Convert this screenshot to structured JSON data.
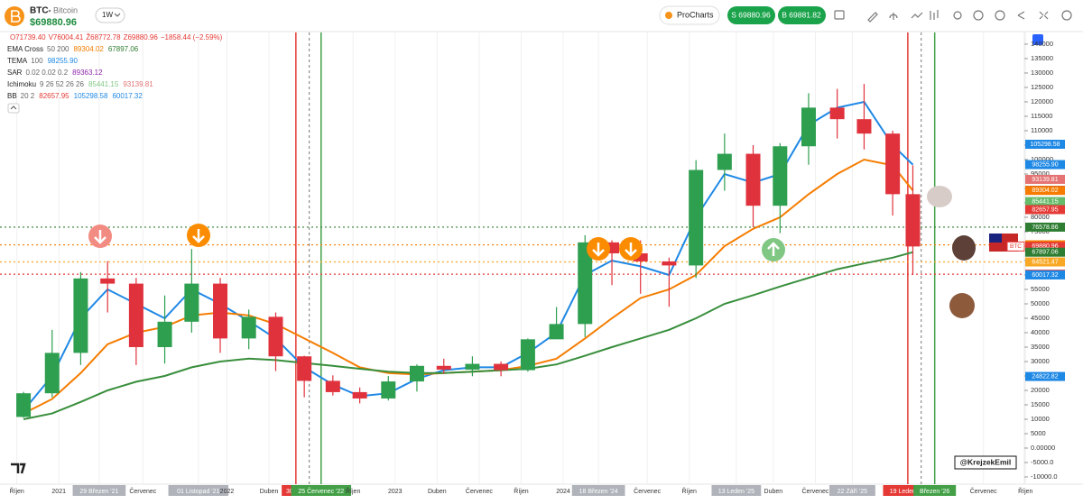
{
  "header": {
    "symbol": "BTC",
    "name": "Bitcoin",
    "price": "$69880.96",
    "interval": "1W",
    "brand": "ProCharts",
    "sell": "S 69880.96",
    "buy": "B 69881.82"
  },
  "ohlc": {
    "open": "O71739.40",
    "high": "V76004.41",
    "low": "Ž68772.78",
    "close": "Z69880.96",
    "change": "−1858.44 (−2.59%)"
  },
  "indicators": [
    {
      "name": "EMA Cross",
      "params": "50 200",
      "values": [
        "89304.02",
        "67897.06"
      ],
      "colors": [
        "#f57c00",
        "#2e7d32"
      ]
    },
    {
      "name": "TEMA",
      "params": "100",
      "values": [
        "98255.90"
      ],
      "colors": [
        "#1e88e5"
      ]
    },
    {
      "name": "SAR",
      "params": "0.02 0.02 0.2",
      "values": [
        "89363.12"
      ],
      "colors": [
        "#8e24aa"
      ]
    },
    {
      "name": "Ichimoku",
      "params": "9 26 52 26 26",
      "values": [
        "85441.15",
        "93139.81"
      ],
      "colors": [
        "#81c784",
        "#e57373"
      ]
    },
    {
      "name": "BB",
      "params": "20 2",
      "values": [
        "82657.95",
        "105298.58",
        "60017.32"
      ],
      "colors": [
        "#e53935",
        "#1e88e5",
        "#1e88e5"
      ]
    }
  ],
  "watermark": "@KrejzekEmil",
  "chart_data": {
    "type": "candlestick",
    "up_color": "#2e9e4f",
    "down_color": "#e0323c",
    "x": [
      2020.79,
      2020.96,
      2021.13,
      2021.29,
      2021.46,
      2021.63,
      2021.79,
      2021.96,
      2022.13,
      2022.29,
      2022.46,
      2022.63,
      2022.79,
      2022.96,
      2023.13,
      2023.29,
      2023.46,
      2023.63,
      2023.79,
      2023.96,
      2024.13,
      2024.29,
      2024.46,
      2024.63,
      2024.79,
      2024.96,
      2025.13,
      2025.29,
      2025.46,
      2025.63,
      2025.79,
      2025.96,
      2026.08
    ],
    "open": [
      10800,
      19000,
      33000,
      58800,
      57000,
      35000,
      43800,
      57000,
      38000,
      45500,
      31800,
      23300,
      19400,
      17200,
      23100,
      28500,
      27200,
      29200,
      27000,
      37700,
      43000,
      71300,
      67500,
      64700,
      63300,
      96400,
      102000,
      84000,
      104600,
      118000,
      114000,
      109000,
      88000
    ],
    "high": [
      19500,
      41000,
      61000,
      64800,
      59000,
      52900,
      69000,
      59000,
      48000,
      47000,
      32000,
      25200,
      21000,
      25000,
      29000,
      31000,
      31800,
      30000,
      38000,
      48900,
      73800,
      72000,
      72000,
      66000,
      99800,
      109000,
      105000,
      105700,
      123000,
      124500,
      126200,
      110000,
      98000
    ],
    "low": [
      10500,
      17600,
      28800,
      47000,
      28800,
      29300,
      40000,
      33000,
      34300,
      26700,
      17600,
      18200,
      15500,
      16500,
      19600,
      25800,
      24900,
      24900,
      26500,
      37800,
      38500,
      56500,
      53500,
      49000,
      58900,
      89200,
      76600,
      74500,
      98200,
      107300,
      103500,
      80600,
      60000
    ],
    "close": [
      19000,
      33000,
      58800,
      57000,
      35000,
      43800,
      57000,
      38000,
      45500,
      31800,
      23300,
      19400,
      17200,
      23100,
      28500,
      27200,
      29200,
      27000,
      37700,
      43000,
      71300,
      67500,
      64700,
      63300,
      96400,
      102000,
      84000,
      104600,
      118000,
      114000,
      109000,
      88000,
      69880.96
    ],
    "series": [
      {
        "color": "#1e88e5",
        "values": [
          13000,
          25000,
          45000,
          55000,
          50000,
          45000,
          55000,
          50000,
          44000,
          38000,
          28000,
          22000,
          18000,
          19000,
          24000,
          27000,
          28000,
          28000,
          33000,
          40000,
          60000,
          65000,
          63000,
          60000,
          80000,
          95000,
          92000,
          95000,
          112000,
          118000,
          120000,
          105000,
          98255.9
        ]
      },
      {
        "color": "#f57c00",
        "values": [
          12000,
          17000,
          26000,
          36000,
          40000,
          42000,
          46000,
          47000,
          46000,
          43000,
          38000,
          33000,
          28000,
          26000,
          25500,
          26000,
          26500,
          27000,
          28500,
          31000,
          38000,
          45000,
          52000,
          55000,
          60000,
          70000,
          76000,
          80000,
          88000,
          95000,
          100000,
          98000,
          89304.02
        ]
      },
      {
        "color": "#388e3c",
        "values": [
          10000,
          12000,
          16000,
          20000,
          23000,
          25000,
          28000,
          30000,
          31000,
          30500,
          29500,
          28500,
          27500,
          26500,
          26000,
          26000,
          26500,
          27000,
          27500,
          29000,
          32000,
          35000,
          38000,
          41000,
          45000,
          50000,
          53000,
          56000,
          59000,
          62000,
          64000,
          66000,
          67897.06
        ]
      }
    ],
    "xlim": [
      2020.65,
      2026.77
    ],
    "ylim": [
      -13750,
      155300
    ],
    "yticks": [
      140000,
      135000,
      130000,
      125000,
      120000,
      115000,
      110000,
      105000,
      100000,
      95000,
      90000,
      85000,
      80000,
      75000,
      70000,
      65000,
      60000,
      55000,
      50000,
      45000,
      40000,
      35000,
      30000,
      25000,
      20000,
      15000,
      10000,
      5000,
      {
        "value": 0,
        "label": "0.00000"
      },
      {
        "value": -5000,
        "label": "-5000.0"
      },
      {
        "value": -10000,
        "label": "-10000.0"
      }
    ],
    "xticks": [
      {
        "value": 2020.75,
        "label": "Říjen"
      },
      {
        "value": 2021.0,
        "label": "2021"
      },
      {
        "value": 2021.24,
        "label": "29 Březen '21",
        "bg": "#b0b3ba"
      },
      {
        "value": 2021.5,
        "label": "Červenec"
      },
      {
        "value": 2021.83,
        "label": "01 Listopad '21",
        "bg": "#b0b3ba"
      },
      {
        "value": 2022.0,
        "label": "2022"
      },
      {
        "value": 2022.25,
        "label": "Duben"
      },
      {
        "value": 2022.41,
        "label": "30 Kvě",
        "bg": "#e53935"
      },
      {
        "value": 2022.56,
        "label": "25 Červenec '22",
        "bg": "#43a047"
      },
      {
        "value": 2022.75,
        "label": "Říjen"
      },
      {
        "value": 2023.0,
        "label": "2023"
      },
      {
        "value": 2023.25,
        "label": "Duben"
      },
      {
        "value": 2023.5,
        "label": "Červenec"
      },
      {
        "value": 2023.75,
        "label": "Říjen"
      },
      {
        "value": 2024.0,
        "label": "2024"
      },
      {
        "value": 2024.21,
        "label": "18 Březen '24",
        "bg": "#b0b3ba"
      },
      {
        "value": 2024.5,
        "label": "Červenec"
      },
      {
        "value": 2024.75,
        "label": "Říjen"
      },
      {
        "value": 2025.03,
        "label": "13 Leden '25",
        "bg": "#b0b3ba"
      },
      {
        "value": 2025.25,
        "label": "Duben"
      },
      {
        "value": 2025.5,
        "label": "Červenec"
      },
      {
        "value": 2025.72,
        "label": "22 Září '25",
        "bg": "#b0b3ba"
      },
      {
        "value": 2026.05,
        "label": "19 Leden '26",
        "bg": "#e53935"
      },
      {
        "value": 2026.21,
        "label": "Březen '26",
        "bg": "#43a047"
      },
      {
        "value": 2026.5,
        "label": "Červenec"
      },
      {
        "value": 2026.75,
        "label": "Říjen"
      }
    ],
    "vlines": [
      {
        "x": 2022.41,
        "color": "#e53935"
      },
      {
        "x": 2022.49,
        "color": "#555555",
        "dashed": true
      },
      {
        "x": 2022.56,
        "color": "#43a047"
      },
      {
        "x": 2026.05,
        "color": "#e53935"
      },
      {
        "x": 2026.13,
        "color": "#555555",
        "dashed": true
      },
      {
        "x": 2026.21,
        "color": "#43a047"
      }
    ],
    "price_tags": [
      {
        "value": 105298.58,
        "label": "105298.58",
        "color": "#1e88e5"
      },
      {
        "value": 98255.9,
        "label": "98255.90",
        "color": "#1e88e5"
      },
      {
        "value": 93139.81,
        "label": "93139.81",
        "color": "#e57373"
      },
      {
        "value": 89363.12,
        "label": "89363.12",
        "color": "#8e24aa"
      },
      {
        "value": 89304.02,
        "label": "89304.02",
        "color": "#f57c00"
      },
      {
        "value": 85441.15,
        "label": "85441.15",
        "color": "#66bb6a"
      },
      {
        "value": 82657.95,
        "label": "82657.95",
        "color": "#e53935"
      },
      {
        "value": 76578.86,
        "label": "76578.86",
        "color": "#2e7d32",
        "dotted": true
      },
      {
        "value": 70449.66,
        "label": "70449.66",
        "color": "#f57c00",
        "dotted": true
      },
      {
        "value": 69880.96,
        "label": "69880.96",
        "color": "#e53935",
        "symbol": "BTC"
      },
      {
        "value": 67897.06,
        "label": "67897.06",
        "color": "#2e7d32"
      },
      {
        "value": 64521.47,
        "label": "64521.47",
        "color": "#f9a825",
        "dotted": true
      },
      {
        "value": 60263.96,
        "label": "60263.96",
        "color": "#e53935",
        "dotted": true
      },
      {
        "value": 60017.32,
        "label": "60017.32",
        "color": "#1e88e5"
      },
      {
        "value": 24822.82,
        "label": "24822.82",
        "color": "#1e88e5"
      }
    ]
  }
}
